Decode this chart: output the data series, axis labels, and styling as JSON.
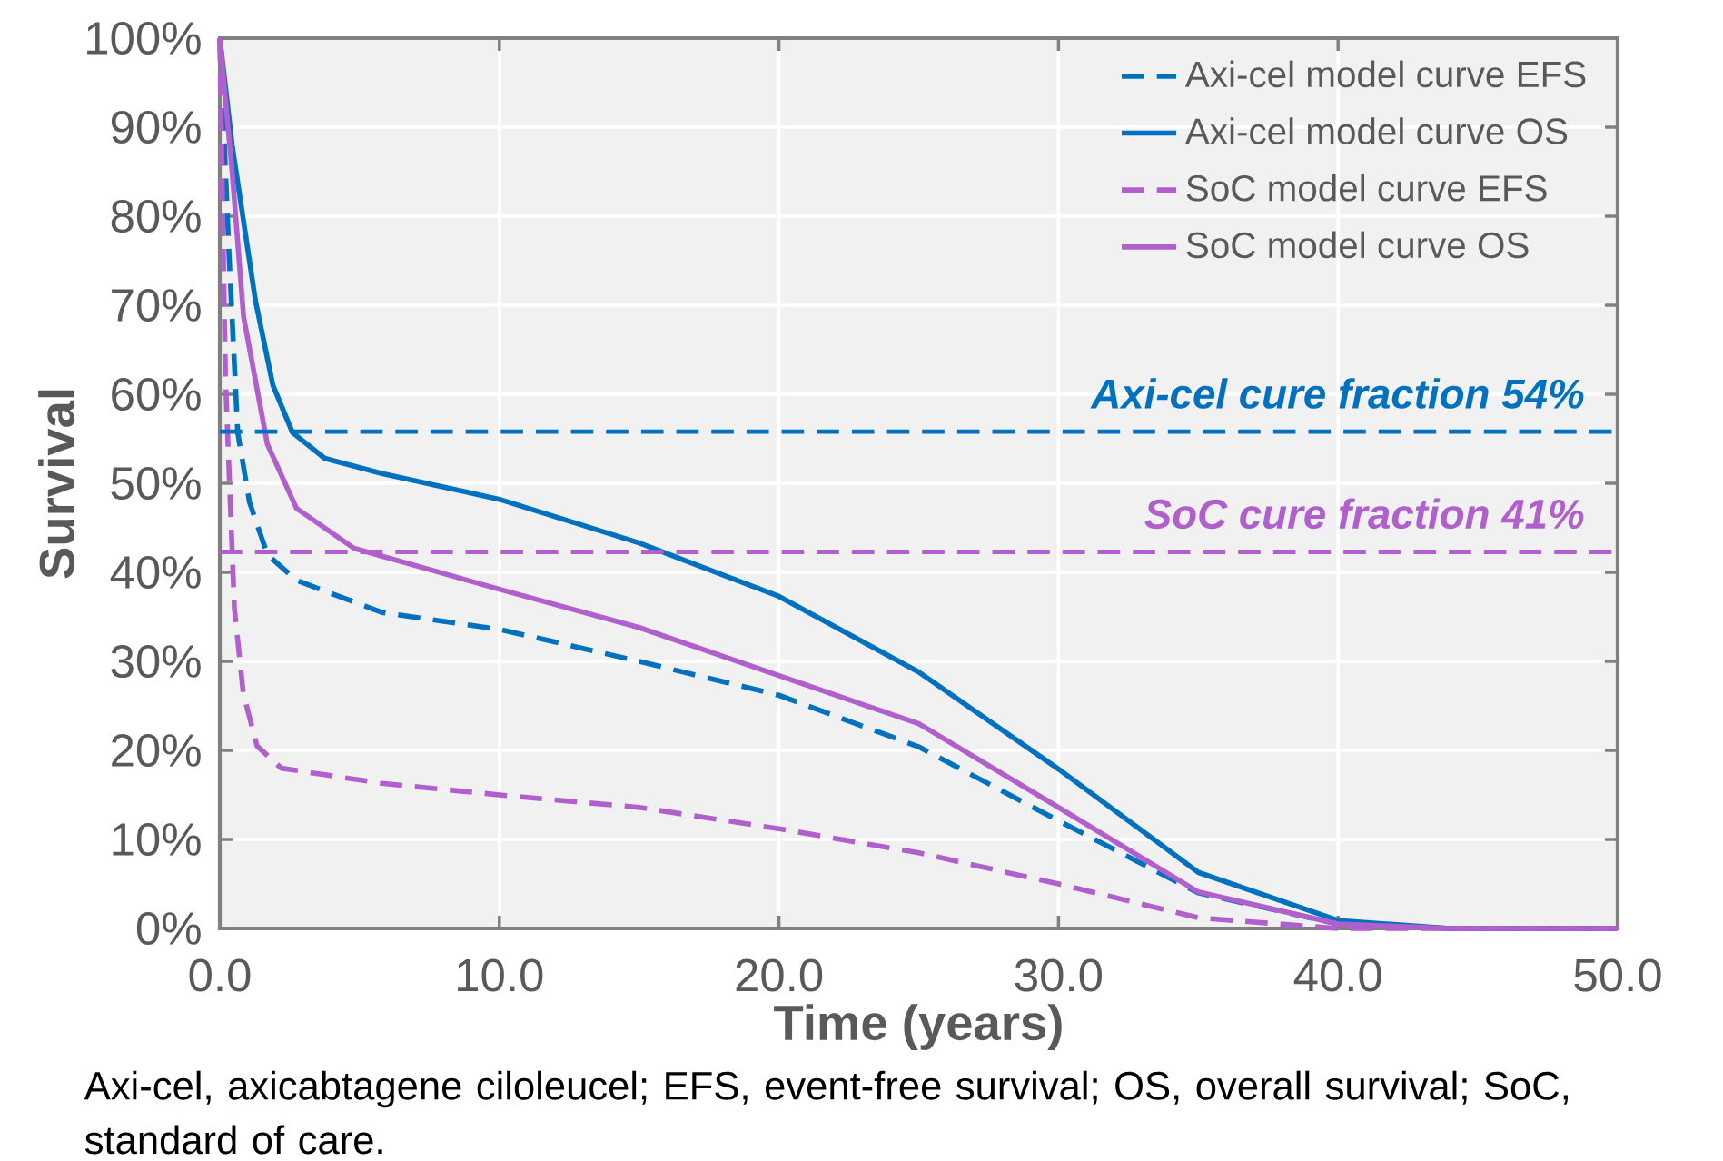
{
  "chart_data": {
    "type": "line",
    "xlabel": "Time (years)",
    "ylabel": "Survival",
    "xlim": [
      0,
      50
    ],
    "ylim": [
      0,
      100
    ],
    "xticks": [
      {
        "value": 0,
        "label": "0.0"
      },
      {
        "value": 10,
        "label": "10.0"
      },
      {
        "value": 20,
        "label": "20.0"
      },
      {
        "value": 30,
        "label": "30.0"
      },
      {
        "value": 40,
        "label": "40.0"
      },
      {
        "value": 50,
        "label": "50.0"
      }
    ],
    "yticks": [
      {
        "value": 0,
        "label": "0%"
      },
      {
        "value": 10,
        "label": "10%"
      },
      {
        "value": 20,
        "label": "20%"
      },
      {
        "value": 30,
        "label": "30%"
      },
      {
        "value": 40,
        "label": "40%"
      },
      {
        "value": 50,
        "label": "50%"
      },
      {
        "value": 60,
        "label": "60%"
      },
      {
        "value": 70,
        "label": "70%"
      },
      {
        "value": 80,
        "label": "80%"
      },
      {
        "value": 90,
        "label": "90%"
      },
      {
        "value": 100,
        "label": "100%"
      }
    ],
    "grid": true,
    "legend": "top right",
    "series": [
      {
        "name": "Axi-cel model curve EFS",
        "color": "#0070c0",
        "line_style": "dashed",
        "x": [
          0,
          0.34,
          0.64,
          1.06,
          1.7,
          2.74,
          5.8,
          10,
          15,
          20,
          25,
          30,
          35,
          40,
          44,
          50
        ],
        "values": [
          100,
          75,
          55.7,
          47.9,
          42,
          39.1,
          35.5,
          33.6,
          30,
          26.2,
          20.4,
          12.1,
          4,
          0.5,
          0,
          0
        ]
      },
      {
        "name": "Axi-cel model curve OS",
        "color": "#0070c0",
        "line_style": "solid",
        "x": [
          0,
          0.44,
          1.27,
          1.9,
          2.6,
          3.75,
          5.8,
          10,
          15,
          20,
          25,
          30,
          35,
          40,
          44,
          50
        ],
        "values": [
          100,
          88,
          70.6,
          61,
          55.7,
          52.8,
          51.1,
          48.2,
          43.3,
          37.3,
          28.8,
          17.9,
          6.3,
          0.9,
          0,
          0
        ]
      },
      {
        "name": "SoC model curve EFS",
        "color": "#b05fcc",
        "line_style": "dashed",
        "x": [
          0,
          0.2,
          0.52,
          0.84,
          1.33,
          2.2,
          5.8,
          10,
          15,
          20,
          25,
          30,
          35,
          40,
          44,
          50
        ],
        "values": [
          100,
          62,
          36,
          26.4,
          20.5,
          18,
          16.3,
          15,
          13.6,
          11.2,
          8.5,
          5,
          1.2,
          0,
          0,
          0
        ]
      },
      {
        "name": "SoC model curve OS",
        "color": "#b05fcc",
        "line_style": "solid",
        "x": [
          0,
          0.44,
          0.85,
          1.7,
          2.74,
          4.8,
          10,
          15,
          20,
          25,
          30,
          35,
          40,
          44,
          50
        ],
        "values": [
          100,
          85,
          68.7,
          54.4,
          47.2,
          42.7,
          38.1,
          33.8,
          28.4,
          23,
          13.6,
          4.1,
          0.5,
          0,
          0
        ]
      }
    ],
    "ref_lines": [
      {
        "axis": "y",
        "value": 55.8,
        "label": "Axi-cel cure fraction 54%",
        "color": "#0070c0",
        "line_style": "dashed"
      },
      {
        "axis": "y",
        "value": 42.3,
        "label": "SoC cure fraction 41%",
        "color": "#b05fcc",
        "line_style": "dashed"
      }
    ],
    "annotations": [
      "Axi-cel, axicabtagene ciloleucel; EFS, event-free survival; OS, overall survival; SoC, standard of care."
    ]
  }
}
